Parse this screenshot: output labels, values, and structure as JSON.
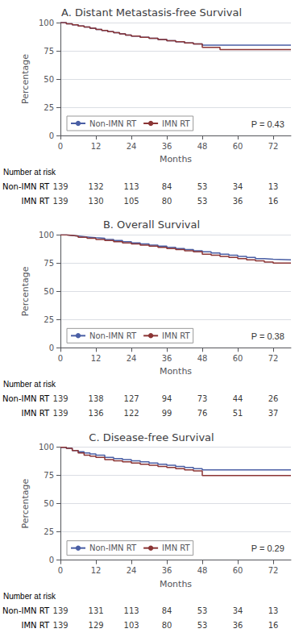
{
  "chart_data": [
    {
      "type": "line",
      "title": "A. Distant Metastasis-free Survival",
      "xlabel": "Months",
      "ylabel": "Percentage",
      "xlim": [
        0,
        78
      ],
      "xticks": [
        0,
        12,
        24,
        36,
        48,
        60,
        72
      ],
      "ylim": [
        0,
        100
      ],
      "yticks": [
        0,
        25,
        50,
        75,
        100
      ],
      "grid": true,
      "legend": "lower left",
      "series": [
        {
          "name": "Non-IMN RT",
          "color": "#4a5fa5",
          "x": [
            0,
            2,
            4,
            6,
            8,
            10,
            12,
            14,
            16,
            18,
            20,
            22,
            24,
            27,
            30,
            33,
            36,
            39,
            42,
            45,
            48,
            54,
            60,
            66,
            72,
            78
          ],
          "values": [
            100,
            99,
            98,
            97,
            96,
            95,
            94,
            93,
            92,
            91,
            90,
            89,
            88,
            87,
            86,
            85,
            84,
            83,
            82,
            81,
            80,
            80,
            80,
            80,
            80,
            80
          ]
        },
        {
          "name": "IMN RT",
          "color": "#8b3535",
          "x": [
            0,
            2,
            4,
            6,
            8,
            10,
            12,
            14,
            16,
            18,
            20,
            22,
            24,
            27,
            30,
            33,
            36,
            39,
            42,
            45,
            48,
            54,
            60,
            66,
            72,
            78
          ],
          "values": [
            100,
            99,
            98,
            97,
            96,
            95,
            94,
            93,
            92,
            91,
            90,
            89,
            88,
            87,
            86,
            85,
            84,
            83,
            82,
            81,
            78,
            76,
            76,
            76,
            76,
            76
          ]
        }
      ],
      "annotations": [
        {
          "text": "P = 0.43"
        }
      ],
      "risk_table": {
        "title": "Number at risk",
        "times": [
          0,
          12,
          24,
          36,
          48,
          60,
          72
        ],
        "rows": [
          {
            "name": "Non-IMN RT",
            "values": [
              139,
              132,
              113,
              84,
              53,
              34,
              13
            ]
          },
          {
            "name": "IMN RT",
            "values": [
              139,
              130,
              105,
              80,
              53,
              36,
              16
            ]
          }
        ]
      }
    },
    {
      "type": "line",
      "title": "B. Overall Survival",
      "xlabel": "Months",
      "ylabel": "Percentage",
      "xlim": [
        0,
        78
      ],
      "xticks": [
        0,
        12,
        24,
        36,
        48,
        60,
        72
      ],
      "ylim": [
        0,
        100
      ],
      "yticks": [
        0,
        25,
        50,
        75,
        100
      ],
      "grid": true,
      "legend": "lower left",
      "series": [
        {
          "name": "Non-IMN RT",
          "color": "#4a5fa5",
          "x": [
            0,
            2,
            4,
            6,
            8,
            10,
            12,
            15,
            18,
            21,
            24,
            27,
            30,
            33,
            36,
            39,
            42,
            45,
            48,
            51,
            54,
            57,
            60,
            63,
            66,
            69,
            72,
            78
          ],
          "values": [
            100,
            99.5,
            99,
            98.5,
            98,
            97.5,
            97,
            96,
            95,
            94,
            93,
            92,
            91,
            90,
            89,
            88,
            87,
            86,
            85,
            84,
            83,
            82,
            81,
            80,
            79,
            78.5,
            78,
            78
          ]
        },
        {
          "name": "IMN RT",
          "color": "#8b3535",
          "x": [
            0,
            2,
            4,
            6,
            9,
            12,
            15,
            18,
            21,
            24,
            27,
            30,
            33,
            36,
            39,
            42,
            45,
            48,
            51,
            54,
            57,
            60,
            63,
            66,
            69,
            72,
            78
          ],
          "values": [
            100,
            99.5,
            99,
            98,
            97,
            96,
            95,
            94,
            93,
            92,
            91,
            90,
            89,
            88,
            87,
            86,
            85,
            83,
            82,
            81,
            80,
            79,
            78,
            77,
            76,
            75,
            75
          ]
        }
      ],
      "annotations": [
        {
          "text": "P = 0.38"
        }
      ],
      "risk_table": {
        "title": "Number at risk",
        "times": [
          0,
          12,
          24,
          36,
          48,
          60,
          72
        ],
        "rows": [
          {
            "name": "Non-IMN RT",
            "values": [
              139,
              138,
              127,
              94,
              73,
              44,
              26
            ]
          },
          {
            "name": "IMN RT",
            "values": [
              139,
              136,
              122,
              99,
              76,
              51,
              37
            ]
          }
        ]
      }
    },
    {
      "type": "line",
      "title": "C. Disease-free Survival",
      "xlabel": "Months",
      "ylabel": "Percentage",
      "xlim": [
        0,
        78
      ],
      "xticks": [
        0,
        12,
        24,
        36,
        48,
        60,
        72
      ],
      "ylim": [
        0,
        100
      ],
      "yticks": [
        0,
        25,
        50,
        75,
        100
      ],
      "grid": true,
      "legend": "lower left",
      "series": [
        {
          "name": "Non-IMN RT",
          "color": "#4a5fa5",
          "x": [
            0,
            2,
            4,
            6,
            8,
            10,
            12,
            15,
            18,
            21,
            24,
            27,
            30,
            33,
            36,
            39,
            42,
            45,
            48,
            54,
            60,
            66,
            72,
            78
          ],
          "values": [
            100,
            99,
            97,
            96,
            95,
            94,
            93,
            91,
            90,
            89,
            88,
            87,
            86,
            85,
            84,
            83,
            82,
            81,
            80,
            80,
            80,
            80,
            80,
            80
          ]
        },
        {
          "name": "IMN RT",
          "color": "#8b3535",
          "x": [
            0,
            2,
            4,
            6,
            8,
            10,
            12,
            15,
            18,
            21,
            24,
            27,
            30,
            33,
            36,
            39,
            42,
            45,
            48,
            54,
            60,
            66,
            72,
            78
          ],
          "values": [
            100,
            99,
            97,
            95,
            93,
            92,
            91,
            89,
            88,
            87,
            86,
            85,
            84,
            83,
            82,
            81,
            80,
            79,
            75,
            75,
            75,
            75,
            75,
            75
          ]
        }
      ],
      "annotations": [
        {
          "text": "P = 0.29"
        }
      ],
      "risk_table": {
        "title": "Number at risk",
        "times": [
          0,
          12,
          24,
          36,
          48,
          60,
          72
        ],
        "rows": [
          {
            "name": "Non-IMN RT",
            "values": [
              139,
              131,
              113,
              84,
              53,
              34,
              13
            ]
          },
          {
            "name": "IMN RT",
            "values": [
              139,
              129,
              103,
              80,
              53,
              36,
              16
            ]
          }
        ]
      }
    }
  ]
}
